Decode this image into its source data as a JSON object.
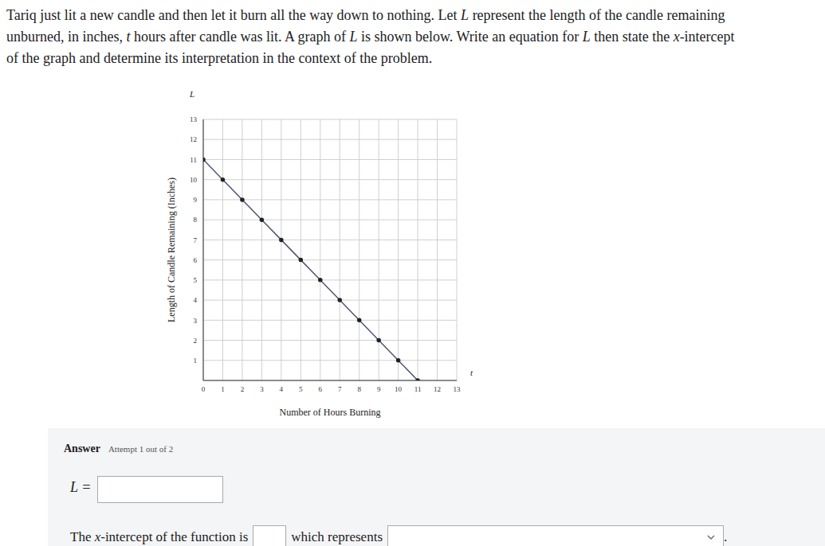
{
  "question_lines": [
    "Tariq just lit a new candle and then let it burn all the way down to nothing. Let L represent the length of the candle remaining",
    "unburned, in inches, t hours after candle was lit. A graph of L is shown below. Write an equation for L then state the x-intercept",
    "of the graph and determine its interpretation in the context of the problem."
  ],
  "chart_data": {
    "type": "line",
    "x_label": "Number of Hours Burning",
    "y_label": "Length of Candle Remaining (Inches)",
    "x_symbol": "t",
    "y_symbol": "L",
    "x": [
      0,
      1,
      2,
      3,
      4,
      5,
      6,
      7,
      8,
      9,
      10,
      11
    ],
    "values": [
      11,
      10,
      9,
      8,
      7,
      6,
      5,
      4,
      3,
      2,
      1,
      0
    ],
    "color": "#4b5670",
    "marker": "circle",
    "xlim": [
      0,
      13
    ],
    "ylim": [
      0,
      13
    ],
    "xticks": [
      0,
      1,
      2,
      3,
      4,
      5,
      6,
      7,
      8,
      9,
      10,
      11,
      12,
      13
    ],
    "yticks": [
      1,
      2,
      3,
      4,
      5,
      6,
      7,
      8,
      9,
      10,
      11,
      12,
      13
    ],
    "grid": true
  },
  "answer": {
    "heading": "Answer",
    "attempt": "Attempt 1 out of 2",
    "equation_prefix": "L =",
    "sentence_start": "The x-intercept of the function is",
    "sentence_middle": "which represents",
    "sentence_end": "."
  }
}
